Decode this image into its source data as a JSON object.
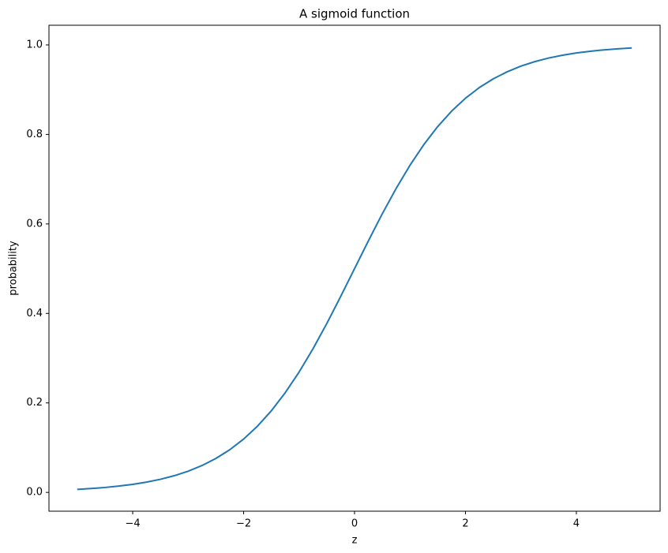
{
  "chart_data": {
    "type": "line",
    "title": "A sigmoid function",
    "x_label": "z",
    "y_label": "probability",
    "x": [
      -5,
      -4.75,
      -4.5,
      -4.25,
      -4,
      -3.75,
      -3.5,
      -3.25,
      -3,
      -2.75,
      -2.5,
      -2.25,
      -2,
      -1.75,
      -1.5,
      -1.25,
      -1,
      -0.75,
      -0.5,
      -0.25,
      0,
      0.25,
      0.5,
      0.75,
      1,
      1.25,
      1.5,
      1.75,
      2,
      2.25,
      2.5,
      2.75,
      3,
      3.25,
      3.5,
      3.75,
      4,
      4.25,
      4.5,
      4.75,
      5
    ],
    "values": [
      0.0067,
      0.0086,
      0.011,
      0.0141,
      0.018,
      0.023,
      0.0293,
      0.0373,
      0.0474,
      0.0601,
      0.0759,
      0.0953,
      0.1192,
      0.148,
      0.1824,
      0.2227,
      0.2689,
      0.3208,
      0.3775,
      0.4378,
      0.5,
      0.5622,
      0.6225,
      0.6792,
      0.7311,
      0.7773,
      0.8176,
      0.852,
      0.8808,
      0.9047,
      0.9241,
      0.9399,
      0.9526,
      0.9627,
      0.9707,
      0.977,
      0.982,
      0.9859,
      0.989,
      0.9914,
      0.9933
    ],
    "color": "#1f77b4",
    "xlim": [
      -5.51,
      5.51
    ],
    "xticks": [
      {
        "value": -4,
        "label": "−4"
      },
      {
        "value": -2,
        "label": "−2"
      },
      0,
      2,
      4
    ],
    "ylim": [
      -0.042,
      1.044
    ],
    "yticks": [
      {
        "value": 0,
        "label": "0.0"
      },
      0.2,
      0.4,
      0.6,
      0.8,
      {
        "value": 1,
        "label": "1.0"
      }
    ],
    "grid": false
  }
}
